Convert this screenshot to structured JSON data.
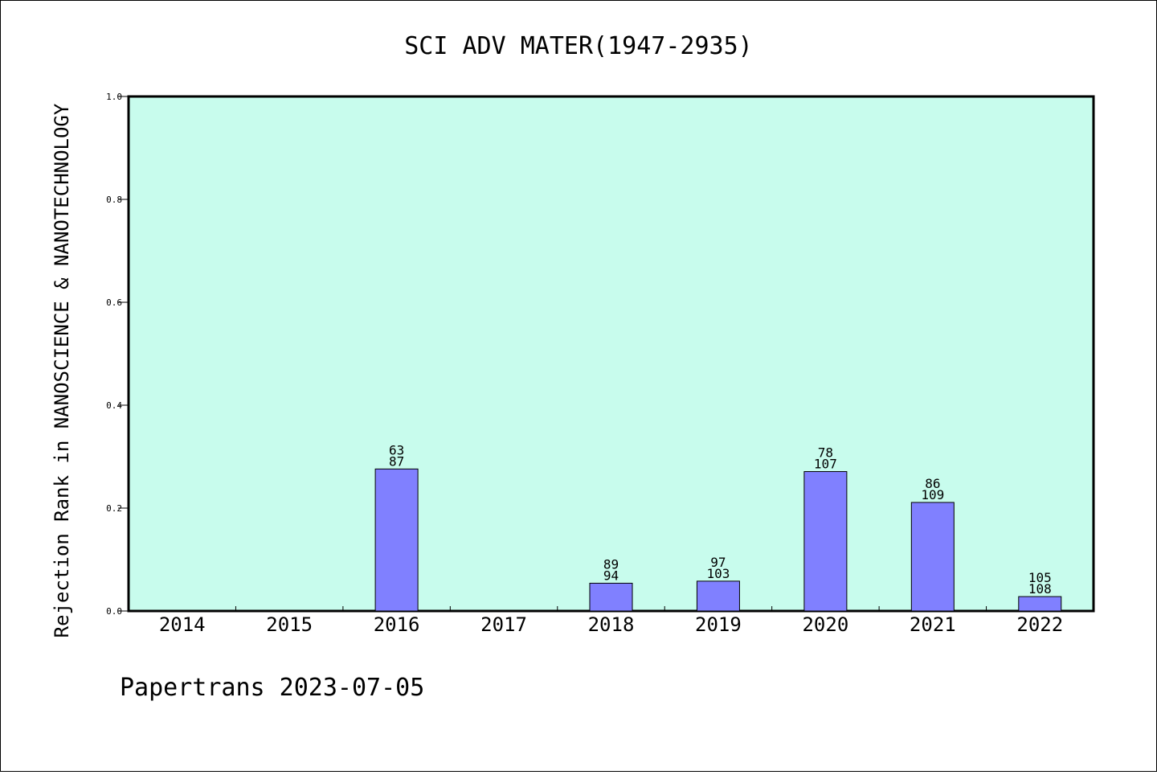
{
  "footer_text": "Papertrans 2023-07-05",
  "chart_data": {
    "type": "bar",
    "title": "SCI ADV MATER(1947-2935)",
    "xlabel": "",
    "ylabel": "Rejection Rank in NANOSCIENCE & NANOTECHNOLOGY",
    "ylim": [
      0,
      1.0
    ],
    "yticks": [
      "0.0",
      "0.2",
      "0.4",
      "0.6",
      "0.8",
      "1.0"
    ],
    "categories": [
      "2014",
      "2015",
      "2016",
      "2017",
      "2018",
      "2019",
      "2020",
      "2021",
      "2022"
    ],
    "values": [
      null,
      null,
      0.276,
      null,
      0.054,
      0.058,
      0.271,
      0.211,
      0.028
    ],
    "labels": [
      null,
      null,
      [
        "63",
        "87"
      ],
      null,
      [
        "89",
        "94"
      ],
      [
        "97",
        "103"
      ],
      [
        "78",
        "107"
      ],
      [
        "86",
        "109"
      ],
      [
        "105",
        "108"
      ]
    ],
    "colors": {
      "plot_bg": "#c8fced",
      "bar_fill": "#8080ff",
      "bar_stroke": "#000000",
      "axis": "#000000"
    },
    "grid": false,
    "legend": "none"
  }
}
